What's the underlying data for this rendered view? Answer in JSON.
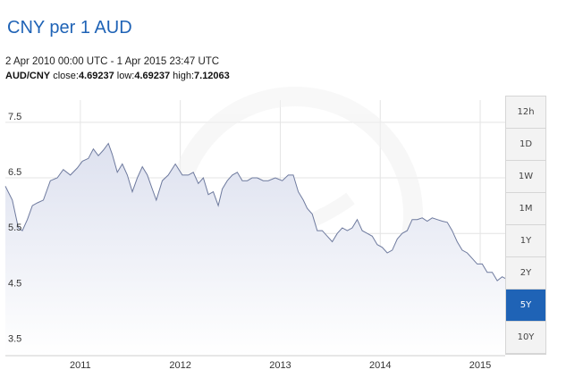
{
  "header": {
    "title": "CNY per 1 AUD",
    "date_range": "2 Apr 2010 00:00 UTC - 1 Apr 2015 23:47 UTC",
    "pair": "AUD/CNY",
    "close_label": "close:",
    "close_value": "4.69237",
    "low_label": "low:",
    "low_value": "4.69237",
    "high_label": "high:",
    "high_value": "7.12063"
  },
  "range_buttons": [
    {
      "label": "12h",
      "active": false
    },
    {
      "label": "1D",
      "active": false
    },
    {
      "label": "1W",
      "active": false
    },
    {
      "label": "1M",
      "active": false
    },
    {
      "label": "1Y",
      "active": false
    },
    {
      "label": "2Y",
      "active": false
    },
    {
      "label": "5Y",
      "active": true
    },
    {
      "label": "10Y",
      "active": false
    }
  ],
  "colors": {
    "title": "#1f63b6",
    "line": "#6e7a9e",
    "area_top": "#dde1ef",
    "area_bottom": "#ffffff",
    "grid": "#e4e4e4",
    "active_button": "#1f63b6"
  },
  "chart_data": {
    "type": "area",
    "title": "CNY per 1 AUD",
    "xlabel": "",
    "ylabel": "",
    "xlim": [
      2010.25,
      2015.25
    ],
    "ylim": [
      3.3,
      7.9
    ],
    "y_ticks": [
      3.5,
      4.5,
      5.5,
      6.5,
      7.5
    ],
    "x_ticks": [
      "2011",
      "2012",
      "2013",
      "2014",
      "2015"
    ],
    "grid": true,
    "legend": "none",
    "series": [
      {
        "x": [
          2010.25,
          2010.32,
          2010.38,
          2010.42,
          2010.47,
          2010.52,
          2010.57,
          2010.63,
          2010.7,
          2010.77,
          2010.83,
          2010.9,
          2010.97,
          2011.02,
          2011.08,
          2011.13,
          2011.18,
          2011.23,
          2011.28,
          2011.32,
          2011.37,
          2011.42,
          2011.47,
          2011.52,
          2011.57,
          2011.62,
          2011.67,
          2011.72,
          2011.76,
          2011.82,
          2011.88,
          2011.95,
          2012.02,
          2012.08,
          2012.13,
          2012.18,
          2012.23,
          2012.28,
          2012.33,
          2012.38,
          2012.42,
          2012.47,
          2012.52,
          2012.57,
          2012.62,
          2012.67,
          2012.72,
          2012.77,
          2012.83,
          2012.88,
          2012.95,
          2013.02,
          2013.08,
          2013.13,
          2013.18,
          2013.23,
          2013.27,
          2013.32,
          2013.37,
          2013.42,
          2013.47,
          2013.52,
          2013.57,
          2013.62,
          2013.67,
          2013.72,
          2013.77,
          2013.82,
          2013.87,
          2013.92,
          2013.97,
          2014.02,
          2014.07,
          2014.12,
          2014.17,
          2014.22,
          2014.27,
          2014.32,
          2014.37,
          2014.42,
          2014.47,
          2014.52,
          2014.57,
          2014.62,
          2014.67,
          2014.72,
          2014.77,
          2014.82,
          2014.87,
          2014.92,
          2014.97,
          2015.02,
          2015.07,
          2015.12,
          2015.17,
          2015.22,
          2015.25
        ],
        "values": [
          6.35,
          6.1,
          5.6,
          5.55,
          5.75,
          6.0,
          6.05,
          6.1,
          6.45,
          6.5,
          6.65,
          6.55,
          6.68,
          6.8,
          6.85,
          7.02,
          6.9,
          7.0,
          7.12,
          6.92,
          6.6,
          6.75,
          6.55,
          6.25,
          6.5,
          6.7,
          6.55,
          6.3,
          6.1,
          6.45,
          6.55,
          6.75,
          6.55,
          6.55,
          6.6,
          6.4,
          6.5,
          6.2,
          6.25,
          6.0,
          6.3,
          6.45,
          6.55,
          6.6,
          6.45,
          6.45,
          6.5,
          6.5,
          6.45,
          6.45,
          6.5,
          6.45,
          6.55,
          6.55,
          6.25,
          6.1,
          5.95,
          5.85,
          5.55,
          5.55,
          5.45,
          5.35,
          5.5,
          5.6,
          5.55,
          5.6,
          5.75,
          5.55,
          5.5,
          5.45,
          5.3,
          5.25,
          5.15,
          5.2,
          5.4,
          5.5,
          5.55,
          5.75,
          5.75,
          5.78,
          5.72,
          5.78,
          5.75,
          5.72,
          5.7,
          5.55,
          5.35,
          5.2,
          5.15,
          5.05,
          4.95,
          4.95,
          4.8,
          4.8,
          4.65,
          4.72,
          4.69
        ]
      }
    ]
  }
}
